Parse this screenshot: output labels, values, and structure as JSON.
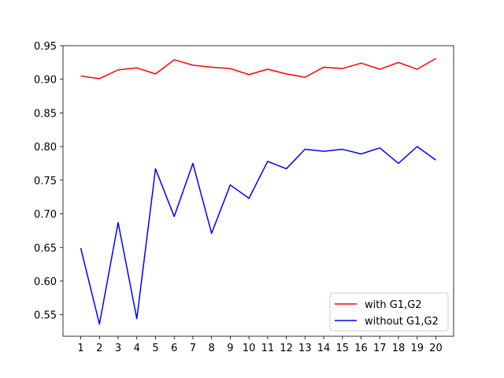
{
  "chart_data": {
    "type": "line",
    "x": [
      1,
      2,
      3,
      4,
      5,
      6,
      7,
      8,
      9,
      10,
      11,
      12,
      13,
      14,
      15,
      16,
      17,
      18,
      19,
      20
    ],
    "xticks": [
      "1",
      "2",
      "3",
      "4",
      "5",
      "6",
      "7",
      "8",
      "9",
      "10",
      "11",
      "12",
      "13",
      "14",
      "15",
      "16",
      "17",
      "18",
      "19",
      "20"
    ],
    "yticks": [
      "0.55",
      "0.60",
      "0.65",
      "0.70",
      "0.75",
      "0.80",
      "0.85",
      "0.90",
      "0.95"
    ],
    "ylim": [
      0.518,
      0.95
    ],
    "xlim": [
      0.05,
      20.95
    ],
    "grid": false,
    "legend_position": "bottom-right",
    "series": [
      {
        "name": "with G1,G2",
        "color": "#ff0000",
        "values": [
          0.905,
          0.901,
          0.914,
          0.917,
          0.908,
          0.929,
          0.921,
          0.918,
          0.916,
          0.907,
          0.915,
          0.908,
          0.903,
          0.918,
          0.916,
          0.924,
          0.915,
          0.925,
          0.915,
          0.931
        ]
      },
      {
        "name": "without G1,G2",
        "color": "#0000ff",
        "values": [
          0.649,
          0.536,
          0.687,
          0.544,
          0.767,
          0.696,
          0.775,
          0.671,
          0.743,
          0.723,
          0.778,
          0.767,
          0.796,
          0.793,
          0.796,
          0.789,
          0.798,
          0.775,
          0.8,
          0.78
        ]
      }
    ]
  }
}
